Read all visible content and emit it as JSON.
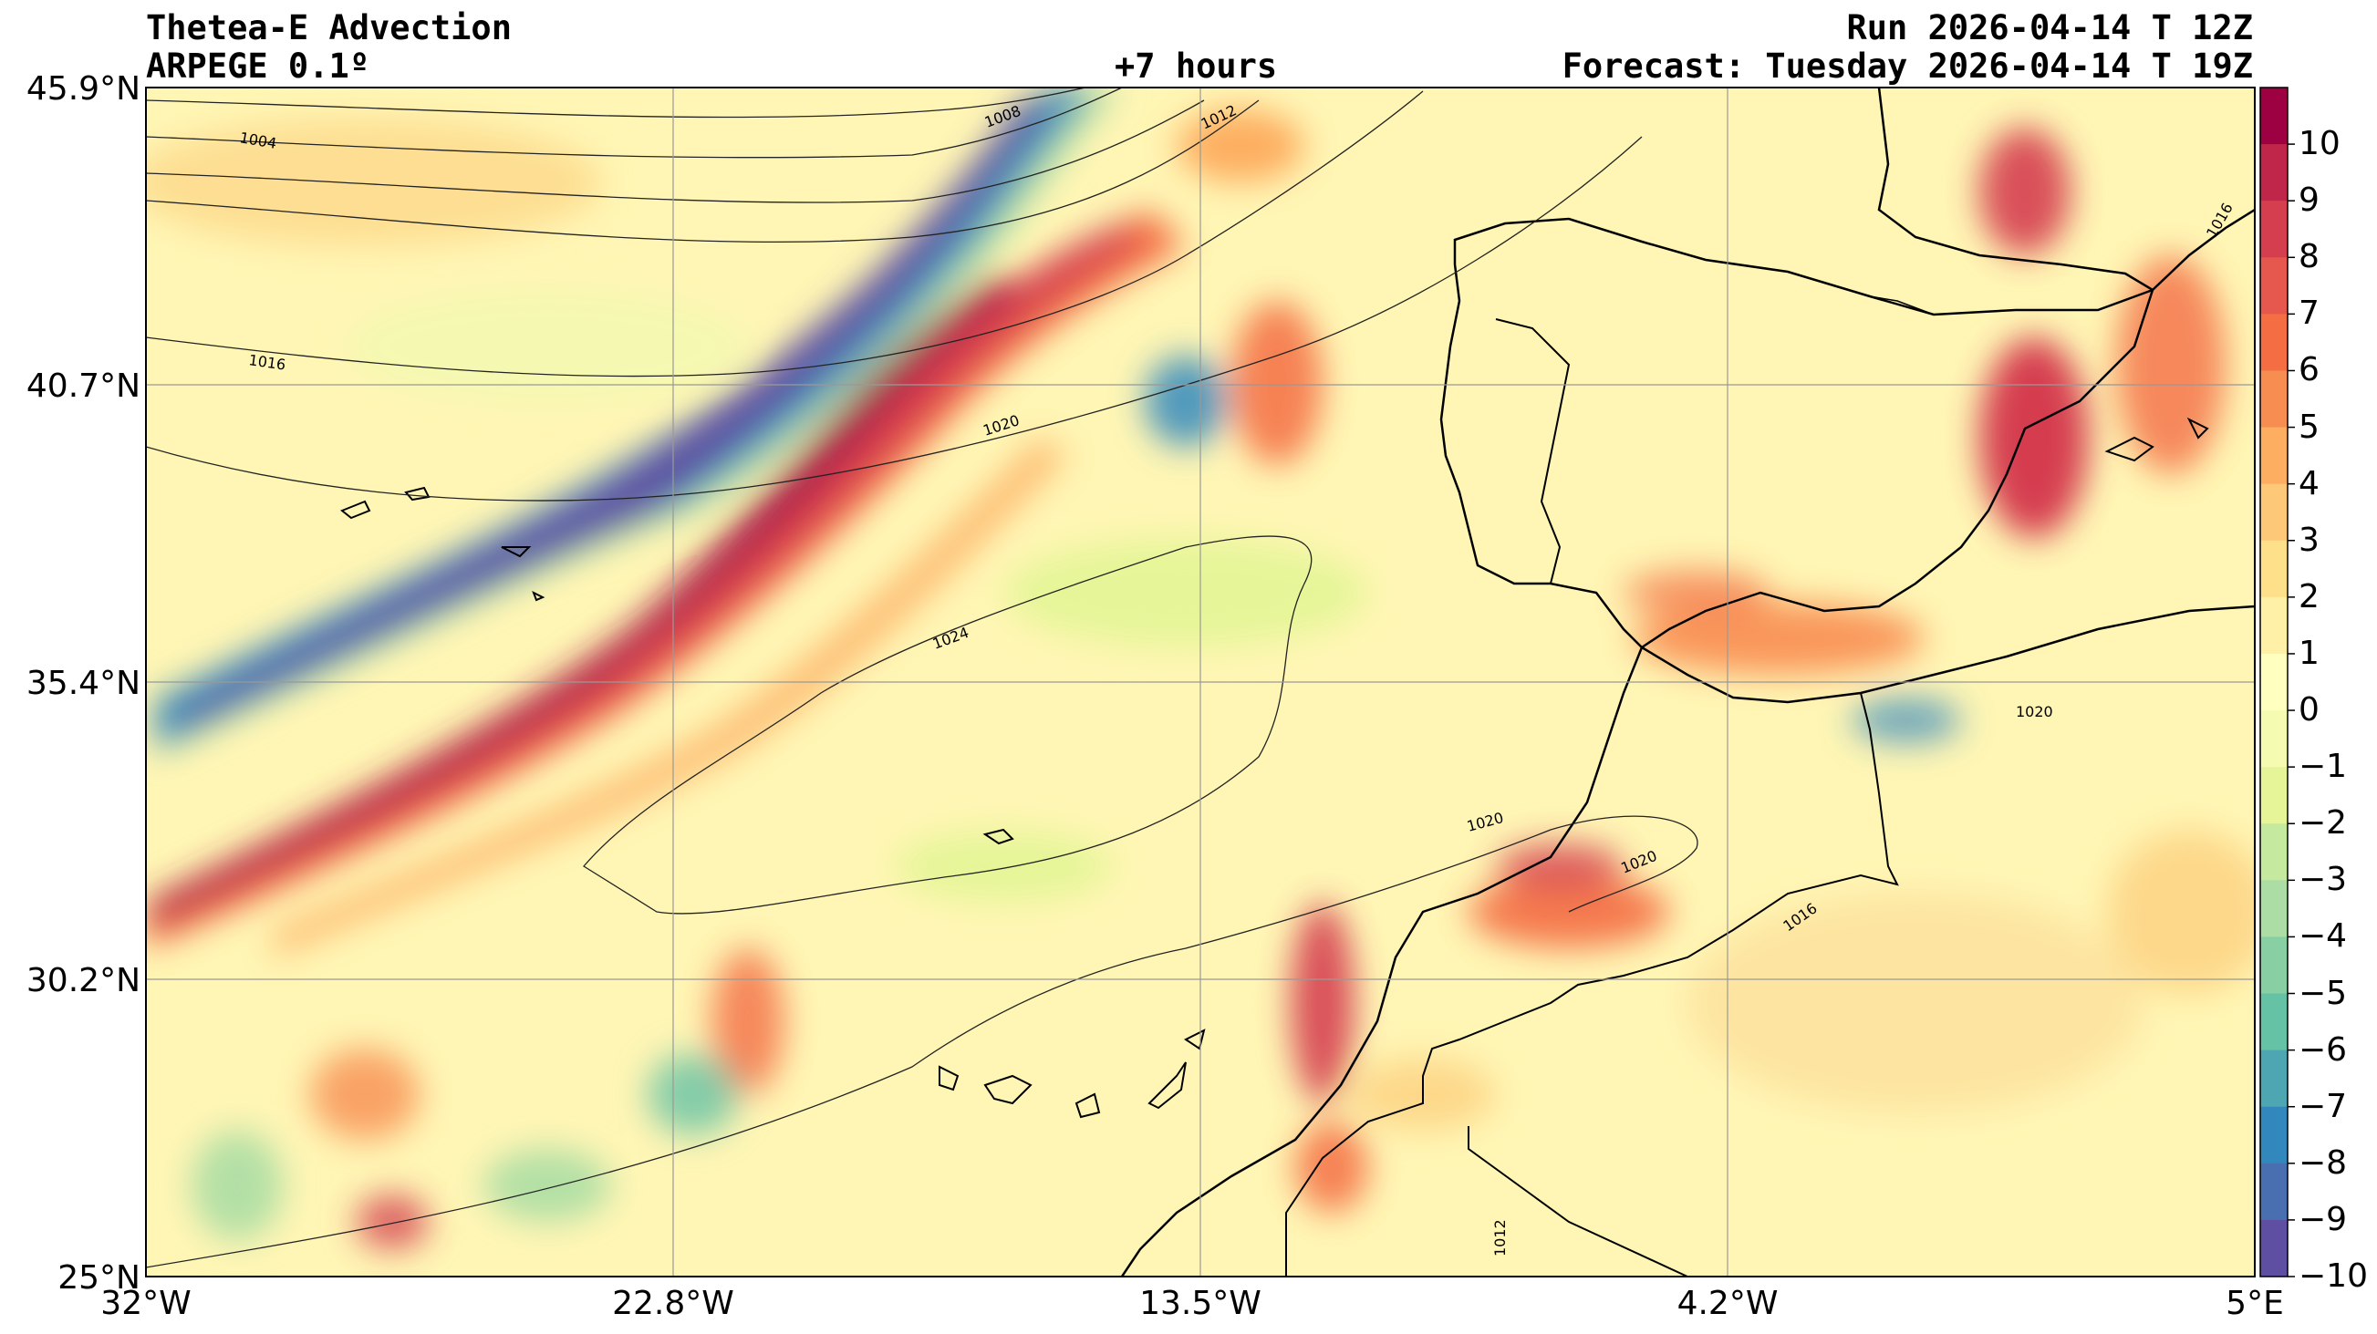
{
  "header": {
    "title_left_1": "Thetea-E Advection",
    "title_left_2": "ARPEGE 0.1º",
    "title_center": "+7 hours",
    "title_right_1": "Run 2026-04-14 T 12Z",
    "title_right_2": "Forecast: Tuesday 2026-04-14 T 19Z"
  },
  "map": {
    "lat_labels": [
      "45.9°N",
      "40.7°N",
      "35.4°N",
      "30.2°N",
      "25°N"
    ],
    "lon_labels": [
      "32°W",
      "22.8°W",
      "13.5°W",
      "4.2°W",
      "5°E"
    ],
    "lat_range": [
      25,
      45.9
    ],
    "lon_range": [
      -32,
      5
    ],
    "isobar_labels": [
      "1004",
      "1008",
      "1012",
      "1016",
      "1020",
      "1024",
      "1020",
      "1020",
      "1016",
      "1016",
      "1020",
      "1012"
    ],
    "colorbar": {
      "ticks": [
        "10",
        "9",
        "8",
        "7",
        "6",
        "5",
        "4",
        "3",
        "2",
        "1",
        "0",
        "−1",
        "−2",
        "−3",
        "−4",
        "−5",
        "−6",
        "−7",
        "−8",
        "−9",
        "−10"
      ],
      "colors": [
        "#9e0142",
        "#c0264a",
        "#d53e4f",
        "#e6584d",
        "#f46d43",
        "#f88d52",
        "#fdae61",
        "#fdc877",
        "#fee08b",
        "#fff0a8",
        "#ffffbf",
        "#f6fbb2",
        "#e6f598",
        "#c6e9a0",
        "#abdda4",
        "#88cfa4",
        "#66c2a5",
        "#4da6b1",
        "#3288bd",
        "#4a6fb0",
        "#5e4fa2"
      ]
    }
  }
}
